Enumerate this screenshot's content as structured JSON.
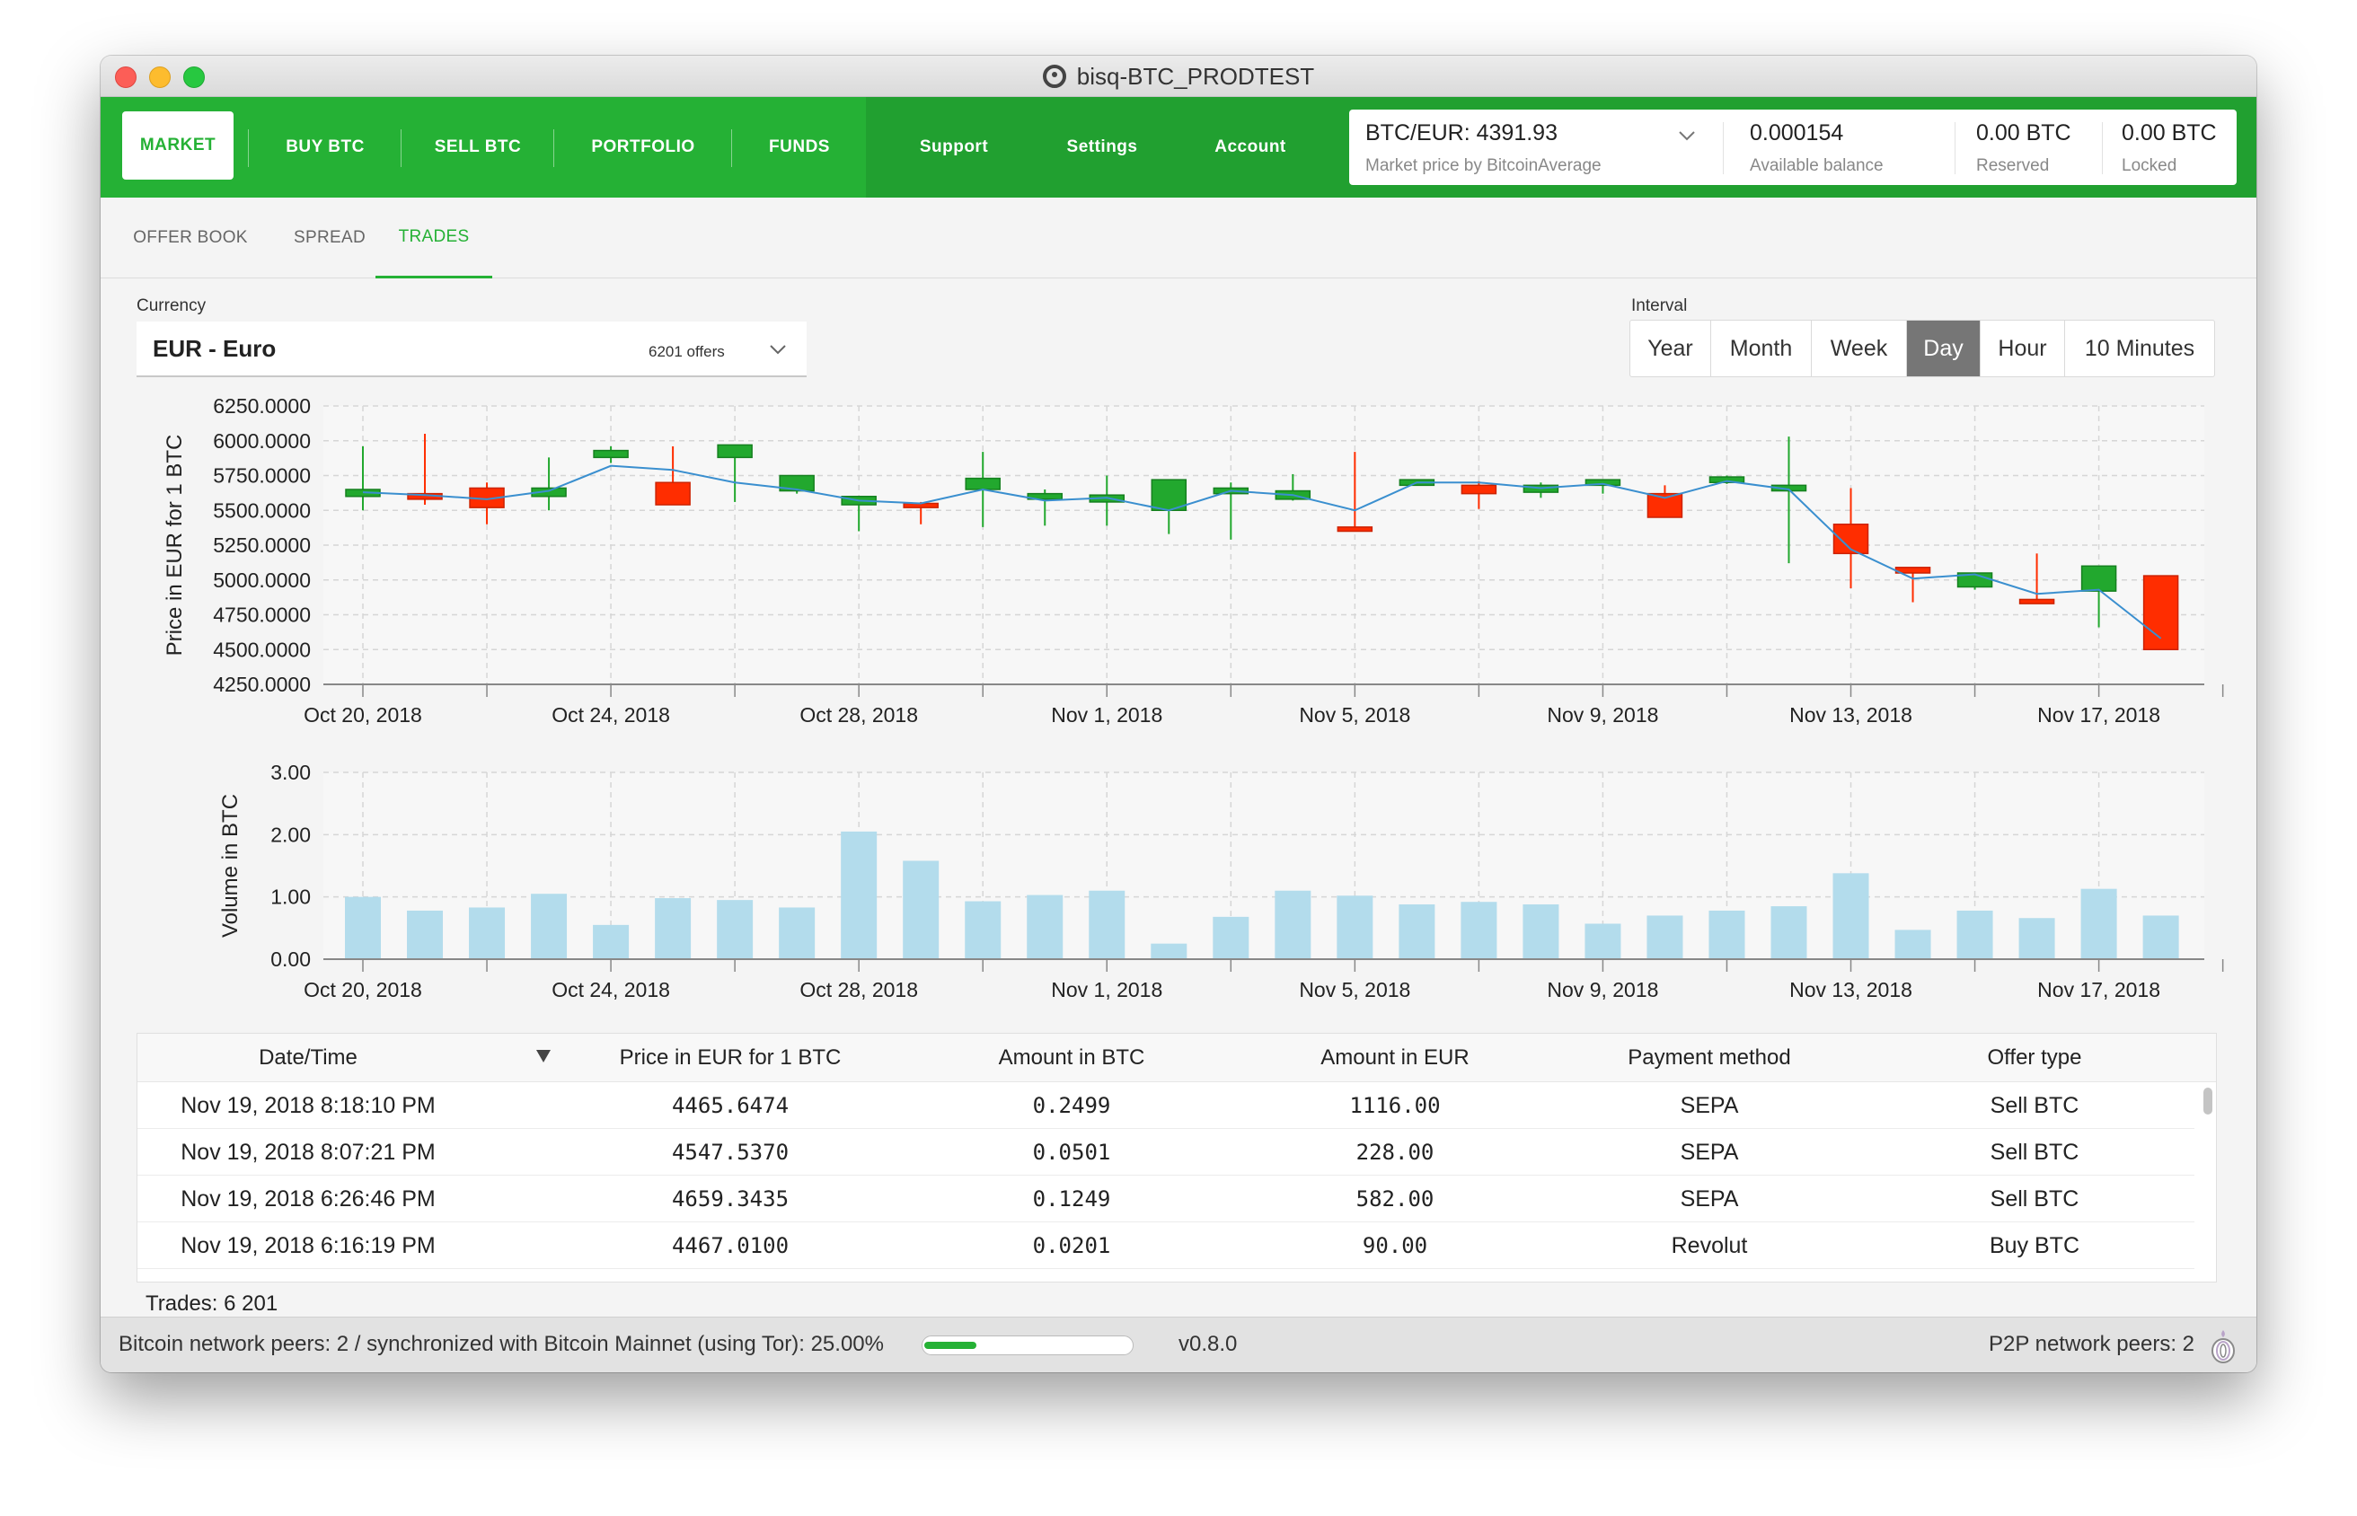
{
  "window": {
    "title": "bisq-BTC_PRODTEST"
  },
  "nav": {
    "items": [
      "MARKET",
      "BUY BTC",
      "SELL BTC",
      "PORTFOLIO",
      "FUNDS",
      "Support",
      "Settings",
      "Account"
    ],
    "active": "MARKET"
  },
  "balance": {
    "price": "BTC/EUR: 4391.93",
    "price_sub": "Market price by BitcoinAverage",
    "available": "0.000154",
    "available_sub": "Available balance",
    "reserved": "0.00 BTC",
    "reserved_sub": "Reserved",
    "locked": "0.00 BTC",
    "locked_sub": "Locked"
  },
  "tabs": [
    "OFFER BOOK",
    "SPREAD",
    "TRADES"
  ],
  "currency": {
    "label": "Currency",
    "value": "EUR - Euro",
    "offers": "6201 offers"
  },
  "interval": {
    "label": "Interval",
    "options": [
      "Year",
      "Month",
      "Week",
      "Day",
      "Hour",
      "10 Minutes"
    ],
    "active": "Day"
  },
  "colors": {
    "brand_green": "#25b135",
    "candle_up": "#22a82e",
    "candle_down": "#ff2d00",
    "volume": "#b3dcec",
    "line": "#3a8fcf"
  },
  "chart_data": [
    {
      "type": "candlestick",
      "title": "",
      "ylabel": "Price in EUR for 1 BTC",
      "ylim": [
        4250,
        6250
      ],
      "yticks": [
        "6250.0000",
        "6000.0000",
        "5750.0000",
        "5500.0000",
        "5250.0000",
        "5000.0000",
        "4750.0000",
        "4500.0000",
        "4250.0000"
      ],
      "xticks": [
        "Oct 20, 2018",
        "Oct 24, 2018",
        "Oct 28, 2018",
        "Nov 1, 2018",
        "Nov 5, 2018",
        "Nov 9, 2018",
        "Nov 13, 2018",
        "Nov 17, 2018"
      ],
      "days": [
        "Oct 20",
        "Oct 21",
        "Oct 22",
        "Oct 23",
        "Oct 24",
        "Oct 25",
        "Oct 26",
        "Oct 27",
        "Oct 28",
        "Oct 29",
        "Oct 30",
        "Oct 31",
        "Nov 1",
        "Nov 2",
        "Nov 3",
        "Nov 4",
        "Nov 5",
        "Nov 6",
        "Nov 7",
        "Nov 8",
        "Nov 9",
        "Nov 10",
        "Nov 11",
        "Nov 12",
        "Nov 13",
        "Nov 14",
        "Nov 15",
        "Nov 16",
        "Nov 17",
        "Nov 18"
      ],
      "open": [
        5600,
        5620,
        5660,
        5600,
        5880,
        5700,
        5880,
        5640,
        5540,
        5550,
        5650,
        5580,
        5560,
        5500,
        5620,
        5580,
        5380,
        5680,
        5680,
        5630,
        5680,
        5620,
        5700,
        5640,
        5400,
        5090,
        4950,
        4860,
        4920,
        5030
      ],
      "close": [
        5650,
        5580,
        5520,
        5660,
        5930,
        5540,
        5970,
        5750,
        5600,
        5520,
        5730,
        5620,
        5610,
        5720,
        5660,
        5640,
        5350,
        5720,
        5620,
        5680,
        5720,
        5450,
        5740,
        5680,
        5190,
        5050,
        5050,
        4830,
        5100,
        4500
      ],
      "high": [
        5960,
        6050,
        5700,
        5880,
        5960,
        5960,
        5970,
        5750,
        5600,
        5560,
        5920,
        5650,
        5750,
        5720,
        5700,
        5760,
        5920,
        5710,
        5710,
        5700,
        5720,
        5680,
        5750,
        6030,
        5660,
        5090,
        5050,
        5190,
        5100,
        5030
      ],
      "low": [
        5500,
        5540,
        5400,
        5500,
        5840,
        5540,
        5560,
        5620,
        5350,
        5400,
        5380,
        5390,
        5390,
        5330,
        5290,
        5570,
        5350,
        5680,
        5510,
        5590,
        5620,
        5450,
        5690,
        5120,
        4940,
        4840,
        4930,
        4830,
        4660,
        4500
      ],
      "avg": [
        5630,
        5610,
        5580,
        5640,
        5820,
        5790,
        5700,
        5650,
        5570,
        5550,
        5650,
        5570,
        5590,
        5500,
        5640,
        5610,
        5500,
        5700,
        5700,
        5660,
        5690,
        5590,
        5710,
        5650,
        5220,
        5010,
        5040,
        4900,
        4930,
        4580
      ]
    },
    {
      "type": "bar",
      "title": "",
      "ylabel": "Volume in BTC",
      "ylim": [
        0,
        3
      ],
      "yticks": [
        "3.00",
        "2.00",
        "1.00",
        "0.00"
      ],
      "xticks": [
        "Oct 20, 2018",
        "Oct 24, 2018",
        "Oct 28, 2018",
        "Nov 1, 2018",
        "Nov 5, 2018",
        "Nov 9, 2018",
        "Nov 13, 2018",
        "Nov 17, 2018"
      ],
      "values": [
        1.0,
        0.78,
        0.83,
        1.05,
        0.55,
        0.98,
        0.95,
        0.83,
        2.05,
        1.58,
        0.93,
        1.03,
        1.1,
        0.25,
        0.68,
        1.1,
        1.02,
        0.88,
        0.92,
        0.88,
        0.57,
        0.7,
        0.78,
        0.85,
        1.38,
        0.47,
        0.78,
        0.66,
        1.13,
        0.7
      ]
    }
  ],
  "table": {
    "headers": [
      "Date/Time",
      "Price in EUR for 1 BTC",
      "Amount in BTC",
      "Amount in EUR",
      "Payment method",
      "Offer type"
    ],
    "rows": [
      [
        "Nov 19, 2018 8:18:10 PM",
        "4465.6474",
        "0.2499",
        "1116.00",
        "SEPA",
        "Sell BTC"
      ],
      [
        "Nov 19, 2018 8:07:21 PM",
        "4547.5370",
        "0.0501",
        "228.00",
        "SEPA",
        "Sell BTC"
      ],
      [
        "Nov 19, 2018 6:26:46 PM",
        "4659.3435",
        "0.1249",
        "582.00",
        "SEPA",
        "Sell BTC"
      ],
      [
        "Nov 19, 2018 6:16:19 PM",
        "4467.0100",
        "0.0201",
        "90.00",
        "Revolut",
        "Buy BTC"
      ]
    ],
    "trades_count": "Trades: 6 201"
  },
  "status": {
    "left": "Bitcoin network peers: 2 / synchronized with Bitcoin Mainnet (using Tor): 25.00%",
    "progress": 0.25,
    "version": "v0.8.0",
    "right": "P2P network peers: 2"
  }
}
